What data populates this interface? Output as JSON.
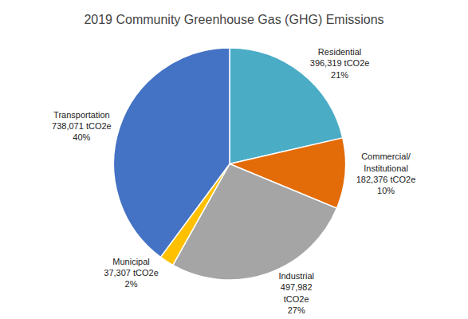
{
  "chart_data": {
    "type": "pie",
    "title": "2019 Community Greenhouse Gas (GHG) Emissions",
    "categories": [
      "Residential",
      "Commercial/\nInstitutional",
      "Industrial",
      "Municipal",
      "Transportation"
    ],
    "values": [
      396319,
      182376,
      497982,
      37307,
      738071
    ],
    "value_labels": [
      "396,319 tCO2e\n21%",
      "182,376 tCO2e\n10%",
      "497,982\ntCO2e\n27%",
      "37,307 tCO2e\n2%",
      "738,071 tCO2e\n40%"
    ],
    "colors": [
      "#4BACC6",
      "#E36C09",
      "#A5A5A5",
      "#FFC000",
      "#4472C4"
    ],
    "legend": false,
    "data_labels": true
  }
}
